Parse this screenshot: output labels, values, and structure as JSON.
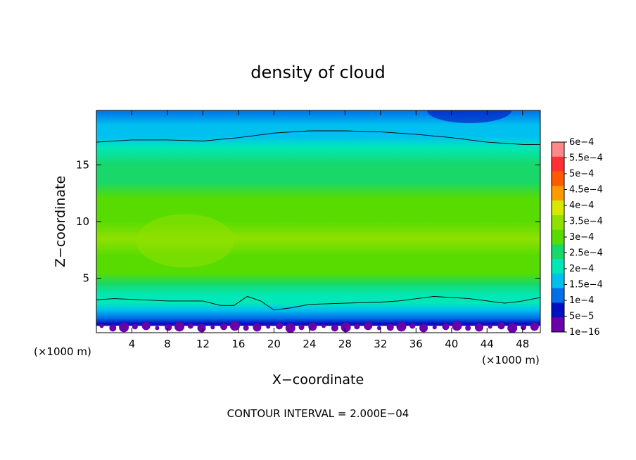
{
  "chart_data": {
    "type": "heatmap",
    "title": "density of cloud",
    "xlabel": "X−coordinate",
    "ylabel": "Z−coordinate",
    "x_unit": "(×1000 m)",
    "z_unit": "(×1000 m)",
    "xlim": [
      0,
      50
    ],
    "ylim": [
      0.2,
      19.8
    ],
    "x_ticks": [
      4,
      8,
      12,
      16,
      20,
      24,
      28,
      32,
      36,
      40,
      44,
      48
    ],
    "y_ticks": [
      5,
      10,
      15
    ],
    "contour_interval_label": "CONTOUR INTERVAL = 2.000E−04",
    "contour_interval": 0.0002,
    "colorbar": {
      "labels": [
        "6e−4",
        "5.5e−4",
        "5e−4",
        "4.5e−4",
        "4e−4",
        "3.5e−4",
        "3e−4",
        "2.5e−4",
        "2e−4",
        "1.5e−4",
        "1e−4",
        "5e−5",
        "1e−16"
      ],
      "values": [
        0.0006,
        0.00055,
        0.0005,
        0.00045,
        0.0004,
        0.00035,
        0.0003,
        0.00025,
        0.0002,
        0.00015,
        0.0001,
        5e-05,
        1e-16
      ],
      "colors": [
        "#ff8888",
        "#ff3030",
        "#ff5a00",
        "#ff9a00",
        "#d8e800",
        "#90e000",
        "#58dc00",
        "#18d86a",
        "#00e8b8",
        "#00c0f0",
        "#0070e8",
        "#0010c0",
        "#6a00a8"
      ]
    },
    "z_profile": {
      "z": [
        0.4,
        1.0,
        1.5,
        2.2,
        2.8,
        3.5,
        4.5,
        5.5,
        7.0,
        8.5,
        10.0,
        12.0,
        13.5,
        15.0,
        16.5,
        17.5,
        18.5,
        19.8
      ],
      "values": [
        2e-05,
        5e-05,
        0.0001,
        0.00015,
        0.0002,
        0.00022,
        0.00026,
        0.0003,
        0.00034,
        0.00035,
        0.00033,
        0.00031,
        0.00029,
        0.00025,
        0.00021,
        0.00019,
        0.00016,
        0.00011
      ]
    },
    "contours": [
      {
        "value": 0.0002,
        "x": [
          0,
          2,
          5,
          8,
          12,
          14,
          15.5,
          17,
          18.5,
          20,
          22,
          24,
          28,
          32,
          34,
          38,
          42,
          46,
          48,
          50
        ],
        "z": [
          3.1,
          3.2,
          3.1,
          3.0,
          3.0,
          2.6,
          2.6,
          3.4,
          3.0,
          2.2,
          2.4,
          2.7,
          2.8,
          2.9,
          3.0,
          3.4,
          3.2,
          2.8,
          3.0,
          3.3
        ]
      },
      {
        "value": 0.0002,
        "x": [
          0,
          4,
          8,
          12,
          16,
          20,
          24,
          28,
          32,
          36,
          40,
          44,
          48,
          50
        ],
        "z": [
          17.0,
          17.2,
          17.2,
          17.1,
          17.4,
          17.8,
          18.0,
          18.0,
          17.9,
          17.7,
          17.4,
          17.0,
          16.8,
          16.8
        ]
      }
    ]
  }
}
